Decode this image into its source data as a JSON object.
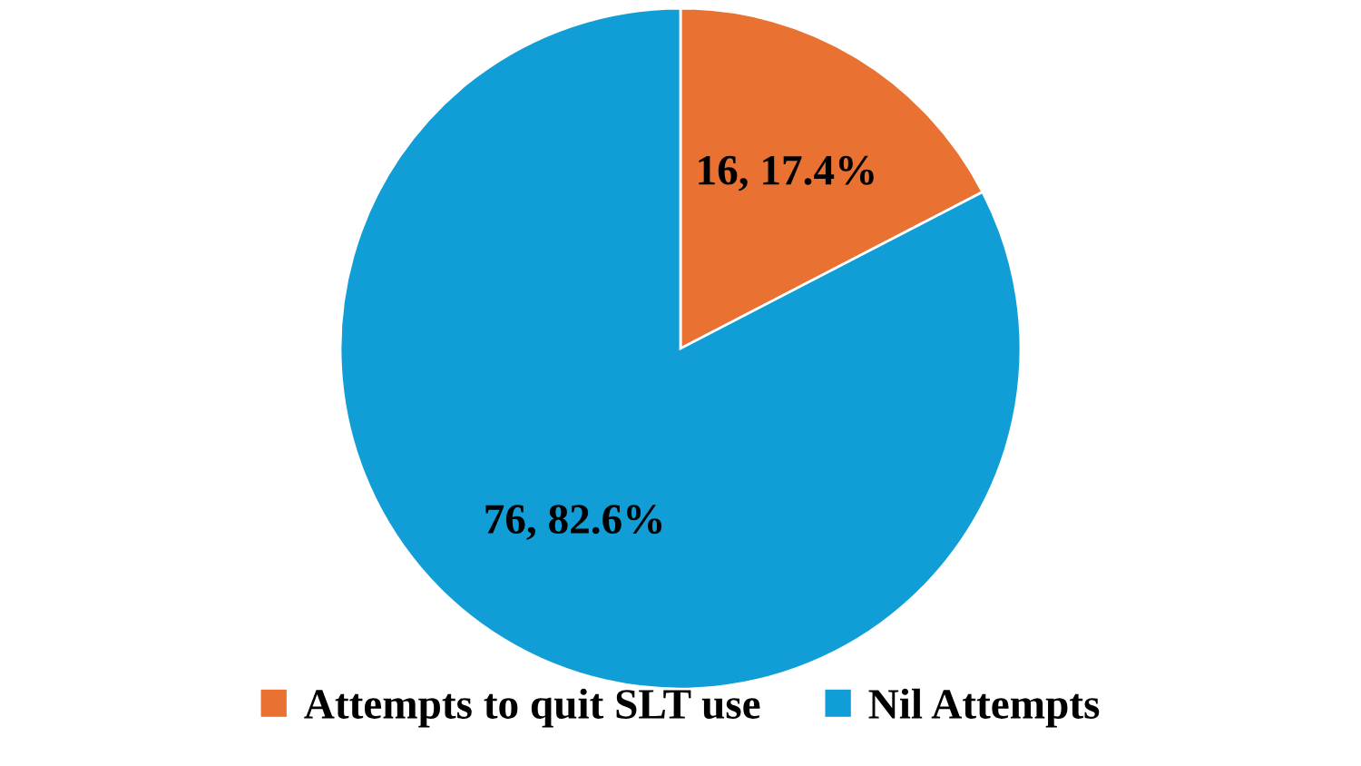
{
  "chart_data": {
    "type": "pie",
    "categories": [
      "Attempts to quit SLT use",
      "Nil Attempts"
    ],
    "values": [
      16,
      76
    ],
    "colors": [
      "#e97132",
      "#119ed7"
    ],
    "value_labels": [
      "16, 17.4%",
      "76, 82.6%"
    ],
    "legend": "bottom"
  }
}
